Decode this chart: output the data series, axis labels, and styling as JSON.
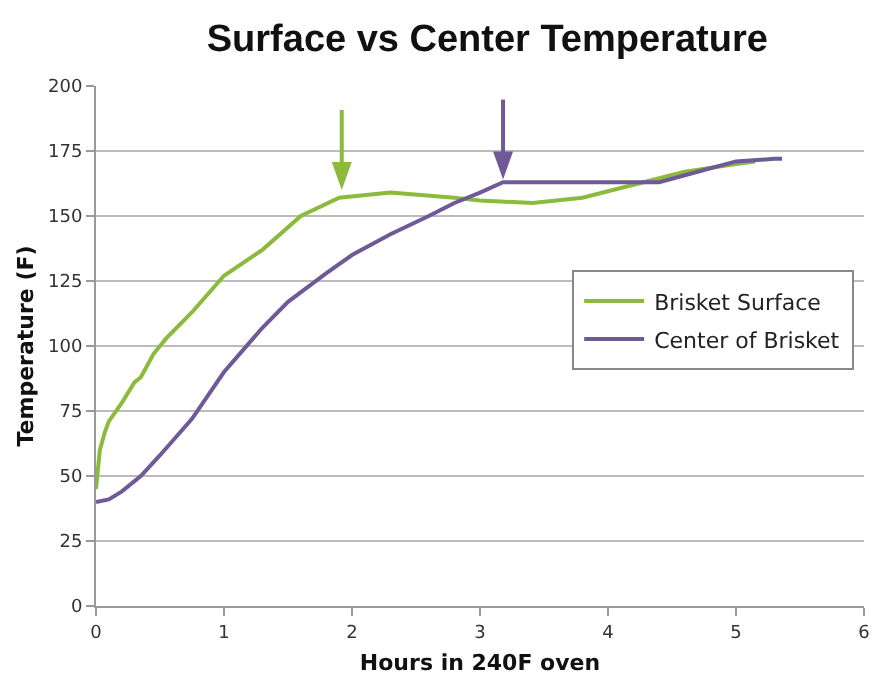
{
  "chart_data": {
    "type": "line",
    "title": "Surface vs Center Temperature",
    "xlabel": "Hours in 240F oven",
    "ylabel": "Temperature (F)",
    "xlim": [
      0,
      6
    ],
    "xticks": [
      0,
      1,
      2,
      3,
      4,
      5,
      6
    ],
    "ylim": [
      0,
      200
    ],
    "yticks": [
      0,
      25,
      50,
      75,
      100,
      125,
      150,
      175,
      200
    ],
    "grid": "y",
    "legend": "right",
    "marker": "none",
    "line_style": "solid",
    "series": [
      {
        "name": "Brisket Surface",
        "color": "#8cba3c",
        "x": [
          0,
          0.03,
          0.07,
          0.1,
          0.2,
          0.3,
          0.35,
          0.45,
          0.55,
          0.75,
          1.0,
          1.3,
          1.6,
          1.9,
          2.3,
          2.8,
          3.0,
          3.41,
          3.8,
          4.2,
          4.6,
          5.0,
          5.15
        ],
        "values": [
          45,
          60,
          67,
          71,
          78,
          86,
          88,
          97,
          103,
          113,
          127,
          137,
          150,
          157,
          159,
          157,
          156,
          155,
          157,
          162,
          167,
          170,
          171
        ]
      },
      {
        "name": "Center of Brisket",
        "color": "#6e5a96",
        "x": [
          0,
          0.1,
          0.2,
          0.35,
          0.5,
          0.75,
          1.0,
          1.3,
          1.5,
          1.8,
          2.0,
          2.3,
          2.6,
          2.8,
          3.0,
          3.18,
          3.5,
          4.0,
          4.4,
          4.7,
          5.0,
          5.3,
          5.36
        ],
        "values": [
          40,
          41,
          44,
          50,
          58,
          72,
          90,
          107,
          117,
          128,
          135,
          143,
          150,
          155,
          159,
          163,
          163,
          163,
          163,
          167,
          171,
          172,
          172
        ]
      }
    ]
  }
}
